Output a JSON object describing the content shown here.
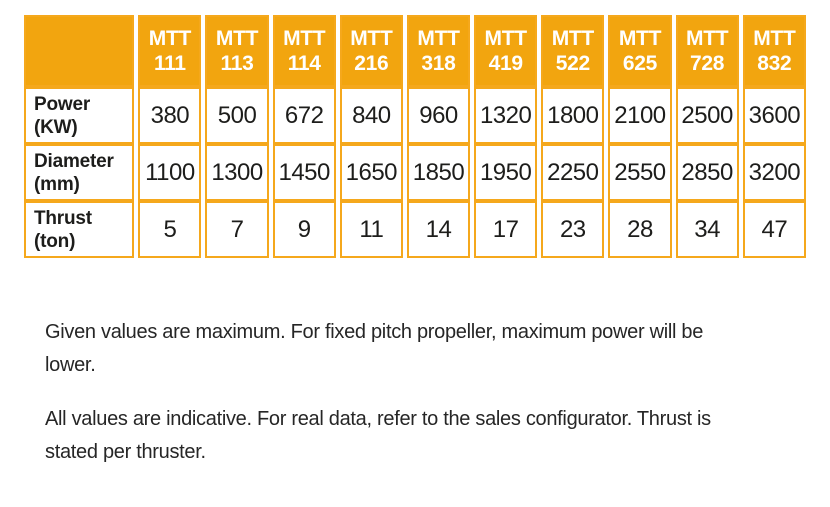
{
  "table": {
    "corner": "",
    "columns": [
      {
        "series": "MTT",
        "model": "111"
      },
      {
        "series": "MTT",
        "model": "113"
      },
      {
        "series": "MTT",
        "model": "114"
      },
      {
        "series": "MTT",
        "model": "216"
      },
      {
        "series": "MTT",
        "model": "318"
      },
      {
        "series": "MTT",
        "model": "419"
      },
      {
        "series": "MTT",
        "model": "522"
      },
      {
        "series": "MTT",
        "model": "625"
      },
      {
        "series": "MTT",
        "model": "728"
      },
      {
        "series": "MTT",
        "model": "832"
      }
    ],
    "rows": [
      {
        "name": "Power",
        "unit": "(KW)",
        "values": [
          "380",
          "500",
          "672",
          "840",
          "960",
          "1320",
          "1800",
          "2100",
          "2500",
          "3600"
        ]
      },
      {
        "name": "Diameter",
        "unit": "(mm)",
        "values": [
          "1100",
          "1300",
          "1450",
          "1650",
          "1850",
          "1950",
          "2250",
          "2550",
          "2850",
          "3200"
        ]
      },
      {
        "name": "Thrust",
        "unit": "(ton)",
        "values": [
          "5",
          "7",
          "9",
          "11",
          "14",
          "17",
          "23",
          "28",
          "34",
          "47"
        ]
      }
    ]
  },
  "chart_data": {
    "type": "table",
    "title": "",
    "columns": [
      "MTT 111",
      "MTT 113",
      "MTT 114",
      "MTT 216",
      "MTT 318",
      "MTT 419",
      "MTT 522",
      "MTT 625",
      "MTT 728",
      "MTT 832"
    ],
    "series": [
      {
        "name": "Power (KW)",
        "values": [
          380,
          500,
          672,
          840,
          960,
          1320,
          1800,
          2100,
          2500,
          3600
        ]
      },
      {
        "name": "Diameter (mm)",
        "values": [
          1100,
          1300,
          1450,
          1650,
          1850,
          1950,
          2250,
          2550,
          2850,
          3200
        ]
      },
      {
        "name": "Thrust (ton)",
        "values": [
          5,
          7,
          9,
          11,
          14,
          17,
          23,
          28,
          34,
          47
        ]
      }
    ]
  },
  "notes": [
    "Given values are maximum. For fixed pitch propeller, maximum power will be lower.",
    "All values are indicative. For real data, refer to the sales configurator. Thrust is stated per thruster."
  ],
  "colors": {
    "header_bg": "#F2A50F",
    "border": "#F5A81C",
    "header_text": "#FFFFFF",
    "body_text": "#1D1D1B"
  }
}
